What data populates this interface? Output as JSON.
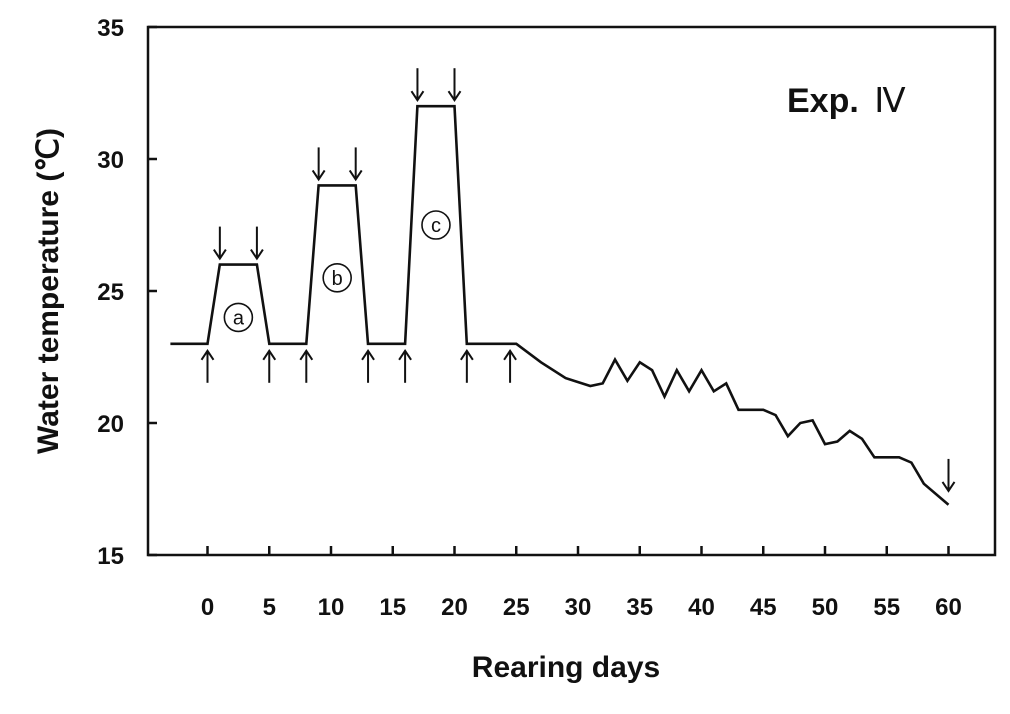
{
  "chart_data": {
    "type": "line",
    "xlabel": "Rearing days",
    "ylabel": "Water temperature (℃)",
    "xlim": [
      -3,
      63
    ],
    "ylim": [
      15,
      35
    ],
    "x_ticks": [
      0,
      5,
      10,
      15,
      20,
      25,
      30,
      35,
      40,
      45,
      50,
      55,
      60
    ],
    "y_ticks": [
      15,
      20,
      25,
      30,
      35
    ],
    "annotation": {
      "prefix": "Exp.",
      "numeral": "Ⅳ"
    },
    "grid": false,
    "legend": "none",
    "series": [
      {
        "x": [
          -3,
          0,
          1,
          4,
          5,
          8,
          9,
          12,
          13,
          16,
          17,
          20,
          21,
          25,
          27,
          29,
          31,
          32,
          33,
          34,
          35,
          36,
          37,
          38,
          39,
          40,
          41,
          42,
          43,
          45,
          46,
          47,
          48,
          49,
          50,
          51,
          52,
          53,
          54,
          56,
          57,
          58,
          60
        ],
        "y": [
          23,
          23,
          26,
          26,
          23,
          23,
          29,
          29,
          23,
          23,
          32,
          32,
          23,
          23,
          22.3,
          21.7,
          21.4,
          21.5,
          22.4,
          21.6,
          22.3,
          22.0,
          21.0,
          22.0,
          21.2,
          22.0,
          21.2,
          21.5,
          20.5,
          20.5,
          20.3,
          19.5,
          20.0,
          20.1,
          19.2,
          19.3,
          19.7,
          19.4,
          18.7,
          18.7,
          18.5,
          17.7,
          16.9
        ]
      }
    ],
    "phase_labels": [
      {
        "text": "a",
        "x": 2.5,
        "y": 24
      },
      {
        "text": "b",
        "x": 10.5,
        "y": 25.5
      },
      {
        "text": "c",
        "x": 18.5,
        "y": 27.5
      }
    ],
    "arrows_down": [
      {
        "x": 1,
        "y": 26
      },
      {
        "x": 4,
        "y": 26
      },
      {
        "x": 9,
        "y": 29
      },
      {
        "x": 12,
        "y": 29
      },
      {
        "x": 17,
        "y": 32
      },
      {
        "x": 20,
        "y": 32
      },
      {
        "x": 60,
        "y": 17.2
      }
    ],
    "arrows_up": [
      {
        "x": 0,
        "y": 23
      },
      {
        "x": 5,
        "y": 23
      },
      {
        "x": 8,
        "y": 23
      },
      {
        "x": 13,
        "y": 23
      },
      {
        "x": 16,
        "y": 23
      },
      {
        "x": 21,
        "y": 23
      },
      {
        "x": 24.5,
        "y": 23
      }
    ],
    "colors": {
      "line": "#111111",
      "frame": "#111111",
      "background": "#ffffff"
    }
  }
}
